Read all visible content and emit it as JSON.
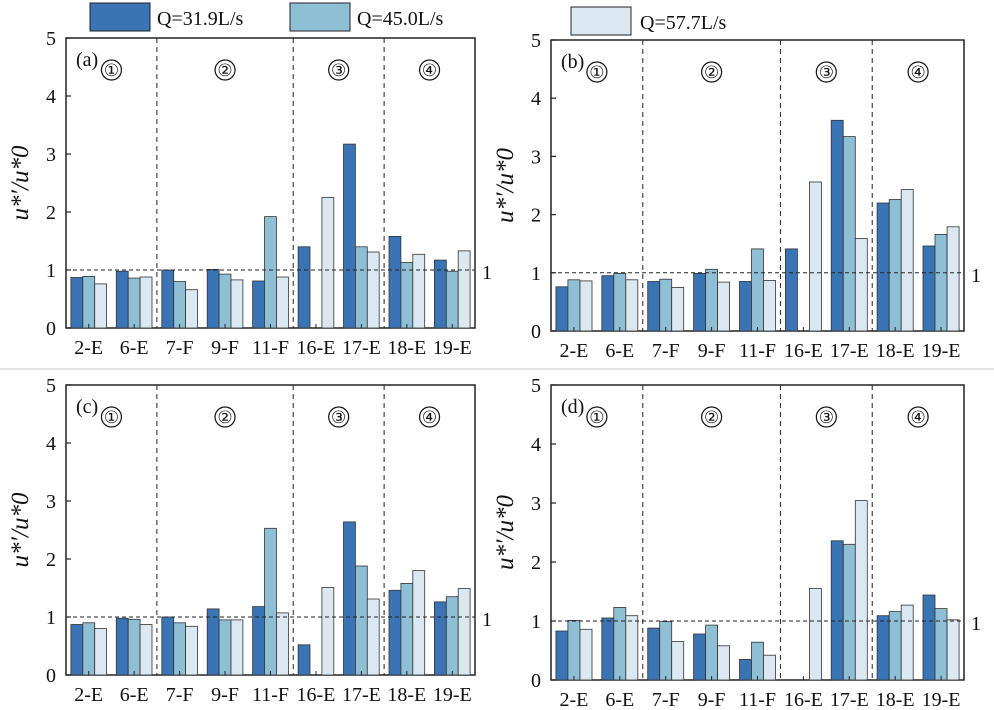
{
  "legend": [
    {
      "label": "Q=31.9L/s",
      "color": "#3a74b4"
    },
    {
      "label": "Q=45.0L/s",
      "color": "#8ebfd4"
    },
    {
      "label": "Q=57.7L/s",
      "color": "#dbe8f1"
    }
  ],
  "chart_data": [
    {
      "type": "bar",
      "panel_label": "(a)",
      "categories": [
        "2-E",
        "6-E",
        "7-F",
        "9-F",
        "11-F",
        "16-E",
        "17-E",
        "18-E",
        "19-E"
      ],
      "series": [
        {
          "name": "Q=31.9L/s",
          "values": [
            0.87,
            0.98,
            1.0,
            1.01,
            0.81,
            1.4,
            3.17,
            1.58,
            1.17
          ]
        },
        {
          "name": "Q=45.0L/s",
          "values": [
            0.89,
            0.86,
            0.8,
            0.93,
            1.92,
            0,
            1.4,
            1.13,
            0.98
          ]
        },
        {
          "name": "Q=57.7L/s",
          "values": [
            0.76,
            0.88,
            0.66,
            0.83,
            0.88,
            2.25,
            1.31,
            1.27,
            1.33
          ]
        }
      ],
      "ylabel": "u*′/u*0",
      "ylim": [
        0,
        5
      ],
      "yticks": [
        "0",
        "1",
        "2",
        "3",
        "4",
        "5"
      ],
      "reference_line": {
        "value": 1,
        "label": "1"
      },
      "zones": [
        {
          "label": "①",
          "span": [
            0,
            2
          ]
        },
        {
          "label": "②",
          "span": [
            2,
            5
          ]
        },
        {
          "label": "③",
          "span": [
            5,
            7
          ]
        },
        {
          "label": "④",
          "span": [
            7,
            9
          ]
        }
      ]
    },
    {
      "type": "bar",
      "panel_label": "(b)",
      "categories": [
        "2-E",
        "6-E",
        "7-F",
        "9-F",
        "11-F",
        "16-E",
        "17-E",
        "18-E",
        "19-E"
      ],
      "series": [
        {
          "name": "Q=31.9L/s",
          "values": [
            0.76,
            0.95,
            0.85,
            0.99,
            0.85,
            1.41,
            3.62,
            2.2,
            1.46
          ]
        },
        {
          "name": "Q=45.0L/s",
          "values": [
            0.88,
            0.99,
            0.89,
            1.06,
            1.41,
            0,
            3.34,
            2.26,
            1.66
          ]
        },
        {
          "name": "Q=57.7L/s",
          "values": [
            0.86,
            0.88,
            0.75,
            0.84,
            0.87,
            2.56,
            1.59,
            2.43,
            1.79
          ]
        }
      ],
      "ylabel": "u*′/u*0",
      "ylim": [
        0,
        5
      ],
      "yticks": [
        "0",
        "1",
        "2",
        "3",
        "4",
        "5"
      ],
      "reference_line": {
        "value": 1,
        "label": "1"
      },
      "zones": [
        {
          "label": "①",
          "span": [
            0,
            2
          ]
        },
        {
          "label": "②",
          "span": [
            2,
            5
          ]
        },
        {
          "label": "③",
          "span": [
            5,
            7
          ]
        },
        {
          "label": "④",
          "span": [
            7,
            9
          ]
        }
      ]
    },
    {
      "type": "bar",
      "panel_label": "(c)",
      "categories": [
        "2-E",
        "6-E",
        "7-F",
        "9-F",
        "11-F",
        "16-E",
        "17-E",
        "18-E",
        "19-E"
      ],
      "series": [
        {
          "name": "Q=31.9L/s",
          "values": [
            0.87,
            0.98,
            1.0,
            1.14,
            1.18,
            0.52,
            2.64,
            1.46,
            1.26
          ]
        },
        {
          "name": "Q=45.0L/s",
          "values": [
            0.9,
            0.96,
            0.9,
            0.95,
            2.53,
            0,
            1.88,
            1.58,
            1.35
          ]
        },
        {
          "name": "Q=57.7L/s",
          "values": [
            0.8,
            0.87,
            0.84,
            0.95,
            1.07,
            1.51,
            1.31,
            1.8,
            1.49
          ]
        }
      ],
      "ylabel": "u*′/u*0",
      "ylim": [
        0,
        5
      ],
      "yticks": [
        "0",
        "1",
        "2",
        "3",
        "4",
        "5"
      ],
      "reference_line": {
        "value": 1,
        "label": "1"
      },
      "zones": [
        {
          "label": "①",
          "span": [
            0,
            2
          ]
        },
        {
          "label": "②",
          "span": [
            2,
            5
          ]
        },
        {
          "label": "③",
          "span": [
            5,
            7
          ]
        },
        {
          "label": "④",
          "span": [
            7,
            9
          ]
        }
      ]
    },
    {
      "type": "bar",
      "panel_label": "(d)",
      "categories": [
        "2-E",
        "6-E",
        "7-F",
        "9-F",
        "11-F",
        "16-E",
        "17-E",
        "18-E",
        "19-E"
      ],
      "series": [
        {
          "name": "Q=31.9L/s",
          "values": [
            0.83,
            1.05,
            0.88,
            0.78,
            0.35,
            0,
            2.36,
            1.09,
            1.44
          ]
        },
        {
          "name": "Q=45.0L/s",
          "values": [
            1.01,
            1.23,
            0.99,
            0.93,
            0.64,
            0,
            2.3,
            1.16,
            1.21
          ]
        },
        {
          "name": "Q=57.7L/s",
          "values": [
            0.86,
            1.09,
            0.65,
            0.58,
            0.42,
            1.55,
            3.04,
            1.27,
            1.02
          ]
        }
      ],
      "ylabel": "u*′/u*0",
      "ylim": [
        0,
        5
      ],
      "yticks": [
        "0",
        "1",
        "2",
        "3",
        "4",
        "5"
      ],
      "reference_line": {
        "value": 1,
        "label": "1"
      },
      "zones": [
        {
          "label": "①",
          "span": [
            0,
            2
          ]
        },
        {
          "label": "②",
          "span": [
            2,
            5
          ]
        },
        {
          "label": "③",
          "span": [
            5,
            7
          ]
        },
        {
          "label": "④",
          "span": [
            7,
            9
          ]
        }
      ]
    }
  ]
}
